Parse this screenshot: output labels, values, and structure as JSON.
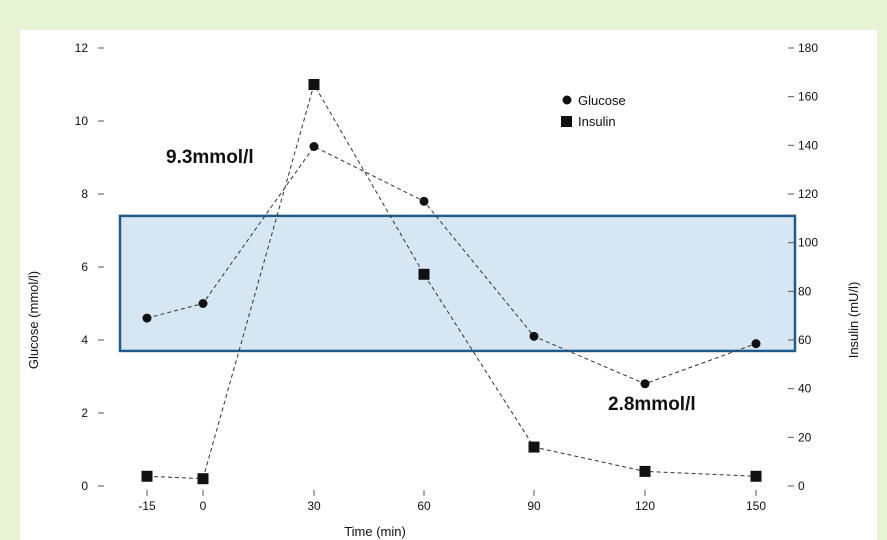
{
  "chart_data": {
    "type": "line",
    "x_axis": {
      "label": "Time (min)",
      "ticks": [
        -15,
        0,
        30,
        60,
        90,
        120,
        150
      ],
      "range": [
        -15,
        150
      ]
    },
    "y_axis_left": {
      "label": "Glucose (mmol/l)",
      "ticks": [
        0,
        2,
        4,
        6,
        8,
        10,
        12
      ],
      "range": [
        0,
        12
      ]
    },
    "y_axis_right": {
      "label": "Insulin (mU/l)",
      "ticks": [
        0,
        20,
        40,
        60,
        80,
        100,
        120,
        140,
        160,
        180
      ],
      "range": [
        0,
        180
      ]
    },
    "series": [
      {
        "name": "Glucose",
        "axis": "left",
        "marker": "circle",
        "x": [
          -15,
          0,
          30,
          60,
          90,
          120,
          150
        ],
        "y": [
          4.6,
          5.0,
          9.3,
          7.8,
          4.1,
          2.8,
          3.9
        ]
      },
      {
        "name": "Insulin",
        "axis": "right",
        "marker": "square",
        "x": [
          -15,
          0,
          30,
          60,
          90,
          120,
          150
        ],
        "y": [
          4,
          3,
          165,
          87,
          16,
          6,
          4
        ]
      }
    ],
    "annotations": [
      {
        "text": "9.3mmol/l"
      },
      {
        "text": "2.8mmol/l"
      }
    ],
    "reference_band": {
      "axis": "left",
      "y_range": [
        3.7,
        7.4
      ],
      "fill": "#d6e7f3",
      "stroke": "#1f5c8c"
    },
    "legend": {
      "position": "top-right"
    },
    "grid": false,
    "line_style": "dashed",
    "line_color": "#333333"
  },
  "colors": {
    "outer_background": "#e8f2d4",
    "plot_background": "#ffffff"
  }
}
